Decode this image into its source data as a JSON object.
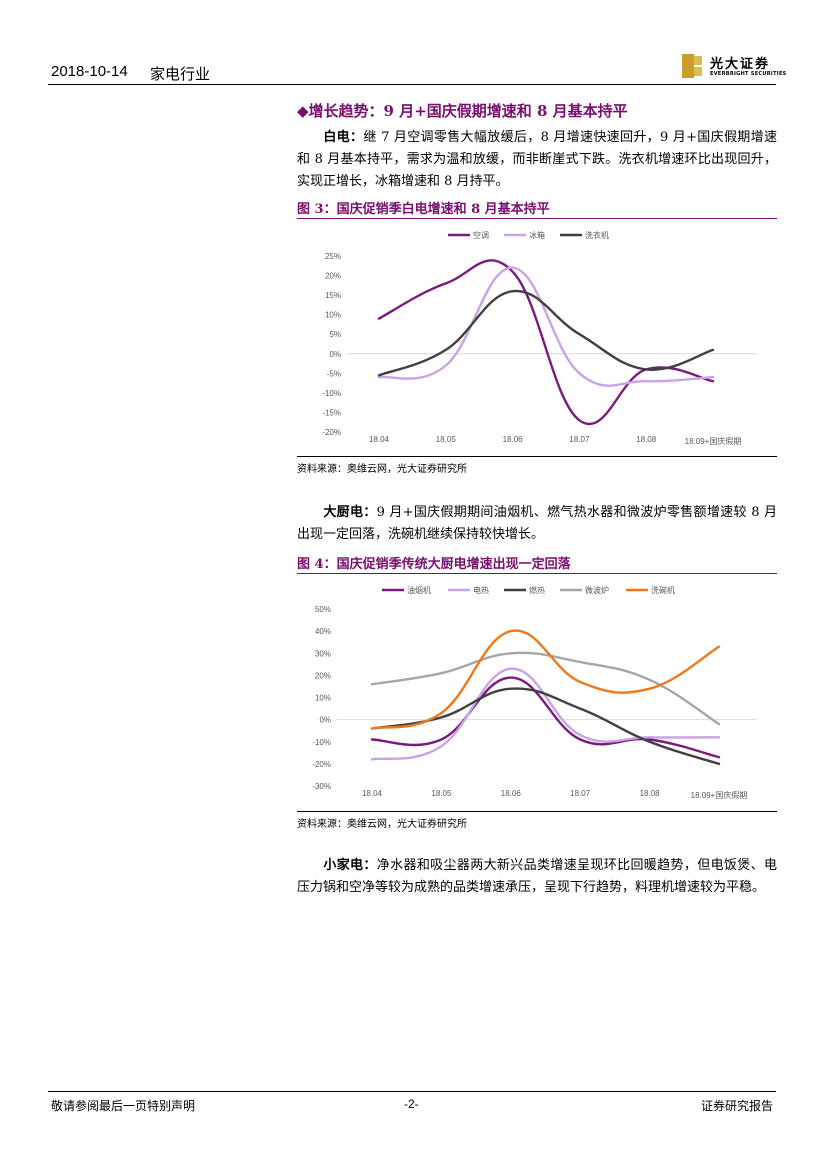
{
  "header": {
    "date": "2018-10-14",
    "industry": "家电行业",
    "logo_cn": "光大证券",
    "logo_en": "EVERBRIGHT SECURITIES"
  },
  "section": {
    "heading": "◆增长趋势：9 月+国庆假期增速和 8 月基本持平"
  },
  "paragraphs": [
    {
      "lead": "白电：",
      "text": "继 7 月空调零售大幅放缓后，8 月增速快速回升，9 月+国庆假期增速和 8 月基本持平，需求为温和放缓，而非断崖式下跌。洗衣机增速环比出现回升，实现正增长，冰箱增速和 8 月持平。"
    },
    {
      "lead": "大厨电：",
      "text": "9 月+国庆假期期间油烟机、燃气热水器和微波炉零售额增速较 8 月出现一定回落，洗碗机继续保持较快增长。"
    },
    {
      "lead": "小家电：",
      "text": "净水器和吸尘器两大新兴品类增速呈现环比回暖趋势，但电饭煲、电压力锅和空净等较为成熟的品类增速承压，呈现下行趋势，料理机增速较为平稳。"
    }
  ],
  "figures": [
    {
      "title": "图 3：国庆促销季白电增速和 8 月基本持平",
      "source": "资料来源：奥维云网，光大证券研究所"
    },
    {
      "title": "图 4：国庆促销季传统大厨电增速出现一定回落",
      "source": "资料来源：奥维云网，光大证券研究所"
    }
  ],
  "chart_data": [
    {
      "type": "line",
      "categories": [
        "18.04",
        "18.05",
        "18.06",
        "18.07",
        "18.08",
        "18.09+国庆假期"
      ],
      "ylim": [
        -20,
        25
      ],
      "yticks": [
        "25%",
        "20%",
        "15%",
        "10%",
        "5%",
        "0%",
        "-5%",
        "-10%",
        "-15%",
        "-20%"
      ],
      "legend_position": "top",
      "grid": false,
      "series": [
        {
          "name": "空调",
          "color": "#7b1a7e",
          "values": [
            9,
            18,
            21,
            -17,
            -4,
            -7
          ]
        },
        {
          "name": "冰箱",
          "color": "#c9a3e6",
          "values": [
            -6,
            -3,
            22,
            -5,
            -7,
            -6
          ]
        },
        {
          "name": "洗衣机",
          "color": "#404040",
          "values": [
            -5.5,
            1,
            16,
            5,
            -4,
            1
          ]
        }
      ]
    },
    {
      "type": "line",
      "categories": [
        "18.04",
        "18.05",
        "18.06",
        "18.07",
        "18.08",
        "18.09+国庆假期"
      ],
      "ylim": [
        -30,
        50
      ],
      "yticks": [
        "50%",
        "40%",
        "30%",
        "20%",
        "10%",
        "0%",
        "-10%",
        "-20%",
        "-30%"
      ],
      "legend_position": "top",
      "grid": false,
      "series": [
        {
          "name": "油烟机",
          "color": "#7b1a7e",
          "values": [
            -9,
            -9,
            19,
            -9,
            -9,
            -17
          ]
        },
        {
          "name": "电热",
          "color": "#c9a3e6",
          "values": [
            -18,
            -12,
            23,
            -7,
            -8,
            -8
          ]
        },
        {
          "name": "燃热",
          "color": "#404040",
          "values": [
            -4,
            1,
            14,
            5,
            -10,
            -20
          ]
        },
        {
          "name": "微波炉",
          "color": "#a6a6a6",
          "values": [
            16,
            21,
            30,
            26,
            18,
            -2
          ]
        },
        {
          "name": "洗碗机",
          "color": "#f07818",
          "values": [
            -4,
            3,
            40,
            17,
            14,
            33
          ]
        }
      ]
    }
  ],
  "footer": {
    "left": "敬请参阅最后一页特别声明",
    "center": "-2-",
    "right": "证券研究报告"
  }
}
